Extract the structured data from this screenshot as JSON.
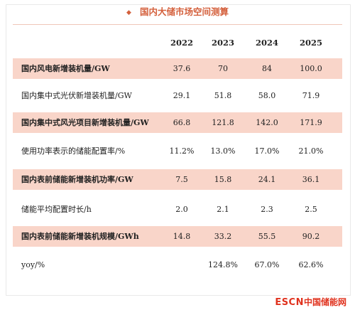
{
  "title": "国内大储市场空间测算",
  "columns": [
    "2022",
    "2023",
    "2024",
    "2025"
  ],
  "rows": [
    {
      "label": "国内风电新增装机量/GW",
      "values": [
        "37.6",
        "70",
        "84",
        "100.0"
      ],
      "shade": true
    },
    {
      "label": "国内集中式光伏新增装机量/GW",
      "values": [
        "29.1",
        "51.8",
        "58.0",
        "71.9"
      ],
      "shade": false
    },
    {
      "label": "国内集中式风光项目新增装机量/GW",
      "values": [
        "66.8",
        "121.8",
        "142.0",
        "171.9"
      ],
      "shade": true
    },
    {
      "label": "使用功率表示的储能配置率/%",
      "values": [
        "11.2%",
        "13.0%",
        "17.0%",
        "21.0%"
      ],
      "shade": false
    },
    {
      "label": "国内表前储能新增装机功率/GW",
      "values": [
        "7.5",
        "15.8",
        "24.1",
        "36.1"
      ],
      "shade": true
    },
    {
      "label": "储能平均配置时长/h",
      "values": [
        "2.0",
        "2.1",
        "2.3",
        "2.5"
      ],
      "shade": false
    },
    {
      "label": "国内表前储能新增装机规模/GWh",
      "values": [
        "14.8",
        "33.2",
        "55.5",
        "90.2"
      ],
      "shade": true
    },
    {
      "label": "yoy/%",
      "values": [
        "",
        "124.8%",
        "67.0%",
        "62.6%"
      ],
      "shade": false
    }
  ],
  "logo": {
    "en": "ESCN",
    "cn": "中国储能网"
  },
  "colors": {
    "accent": "#d4603c",
    "shade": "#f9d5c9",
    "logo": "#e0321e"
  }
}
